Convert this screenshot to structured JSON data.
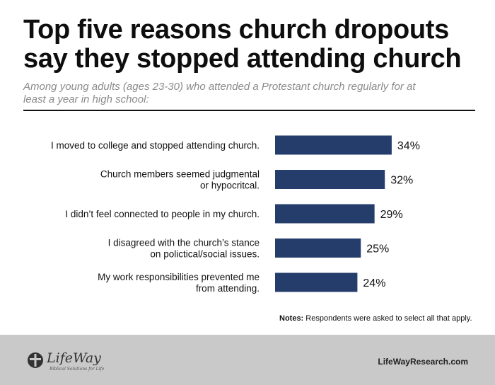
{
  "header": {
    "title": "Top five reasons church dropouts say they stopped attending church",
    "subtitle": "Among young adults (ages 23-30) who attended a Protestant church regularly for at least a year in high school:"
  },
  "chart_data": {
    "type": "bar",
    "orientation": "horizontal",
    "categories": [
      [
        "I moved to college and stopped attending church."
      ],
      [
        "Church members seemed judgmental",
        "or hypocritcal."
      ],
      [
        "I didn’t feel connected to people in my church."
      ],
      [
        "I disagreed with the church’s stance",
        "on polictical/social issues."
      ],
      [
        "My work responsibilities prevented me",
        "from attending."
      ]
    ],
    "values": [
      34,
      32,
      29,
      25,
      24
    ],
    "value_labels": [
      "34%",
      "32%",
      "29%",
      "25%",
      "24%"
    ],
    "unit": "%",
    "bar_color": "#253d6b",
    "grid": false,
    "legend": "none"
  },
  "notes": {
    "label": "Notes:",
    "text": " Respondents were asked to select all that apply."
  },
  "footer": {
    "logo_text": "LifeWay",
    "logo_tagline": "Biblical Solutions for Life",
    "site": "LifeWayResearch.com",
    "background": "#c9c9c9"
  }
}
